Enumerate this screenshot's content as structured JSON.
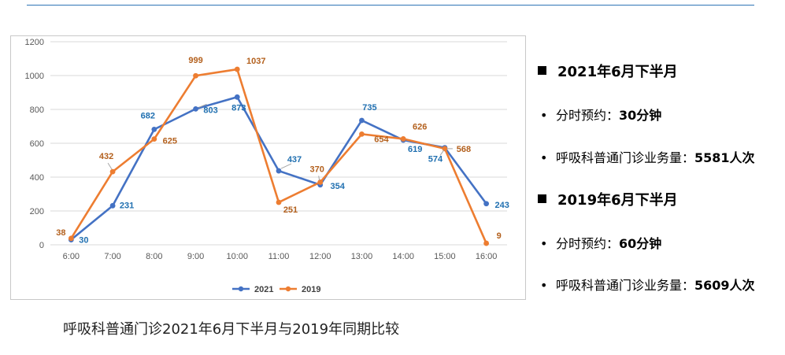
{
  "caption": "呼吸科普通门诊2021年6月下半月与2019年同期比较",
  "side": {
    "s2021": {
      "heading": "2021年6月下半月",
      "b1_label": "分时预约：",
      "b1_value": "30分钟",
      "b2_label": "呼吸科普通门诊业务量：",
      "b2_value": "5581人次"
    },
    "s2019": {
      "heading": "2019年6月下半月",
      "b1_label": "分时预约：",
      "b1_value": "60分钟",
      "b2_label": "呼吸科普通门诊业务量：",
      "b2_value": "5609人次"
    }
  },
  "chart_data": {
    "type": "line",
    "categories": [
      "6:00",
      "7:00",
      "8:00",
      "9:00",
      "10:00",
      "11:00",
      "12:00",
      "13:00",
      "14:00",
      "15:00",
      "16:00"
    ],
    "series": [
      {
        "name": "2021",
        "color": "#4472c4",
        "label_color": "#1f6fb0",
        "values": [
          30,
          231,
          682,
          803,
          873,
          437,
          354,
          735,
          619,
          574,
          243
        ]
      },
      {
        "name": "2019",
        "color": "#ed7d31",
        "label_color": "#b3601d",
        "values": [
          38,
          432,
          625,
          999,
          1037,
          251,
          370,
          654,
          626,
          568,
          9
        ]
      }
    ],
    "ylim": [
      0,
      1200
    ],
    "yticks": [
      0,
      200,
      400,
      600,
      800,
      1000,
      1200
    ],
    "grid": true,
    "legend": "bottom",
    "data_labels": true
  }
}
